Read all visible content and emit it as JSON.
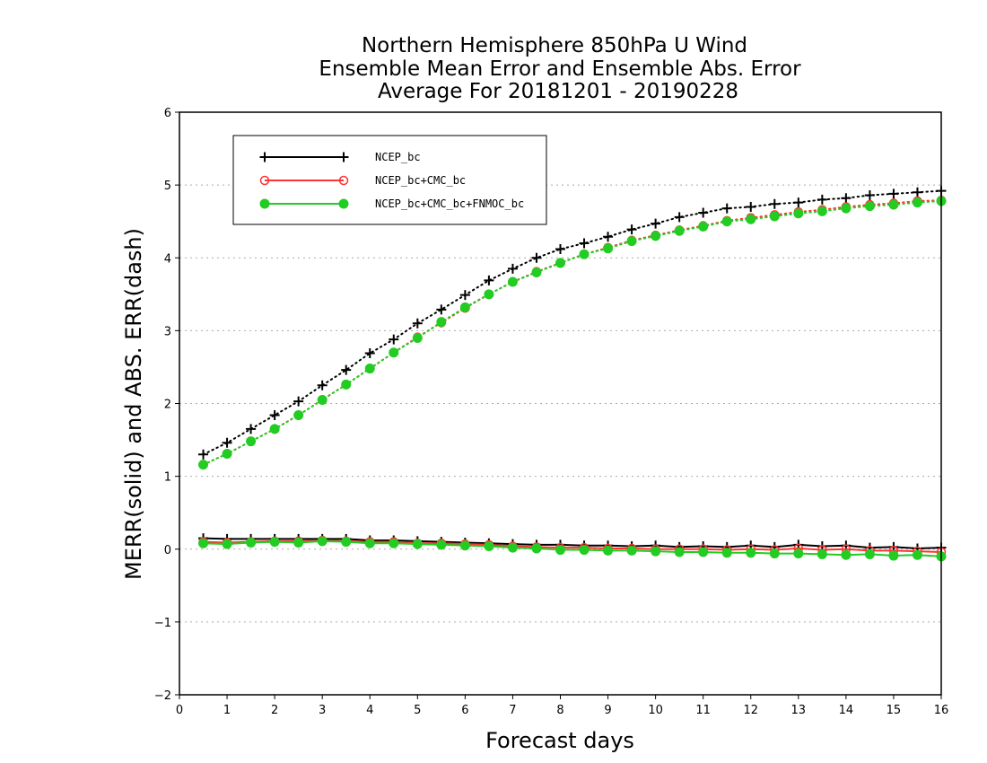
{
  "chart_data": {
    "type": "line",
    "title": [
      "Northern Hemisphere 850hPa U Wind",
      "Ensemble Mean Error and Ensemble Abs. Error",
      "Average For 20181201 - 20190228"
    ],
    "xlabel": "Forecast days",
    "ylabel": "MERR(solid) and ABS. ERR(dash)",
    "xlim": [
      0,
      16
    ],
    "ylim": [
      -2,
      6
    ],
    "xticks": [
      "0",
      "1",
      "2",
      "3",
      "4",
      "5",
      "6",
      "7",
      "8",
      "9",
      "10",
      "11",
      "12",
      "13",
      "14",
      "15",
      "16"
    ],
    "yticks": [
      "6",
      "5",
      "4",
      "3",
      "2",
      "1",
      "0",
      "−1",
      "−2"
    ],
    "grid": "horizontal dotted",
    "legend_position": "top-left",
    "x": [
      0.5,
      1,
      1.5,
      2,
      2.5,
      3,
      3.5,
      4,
      4.5,
      5,
      5.5,
      6,
      6.5,
      7,
      7.5,
      8,
      8.5,
      9,
      9.5,
      10,
      10.5,
      11,
      11.5,
      12,
      12.5,
      13,
      13.5,
      14,
      14.5,
      15,
      15.5,
      16
    ],
    "series": [
      {
        "name": "NCEP_bc",
        "color": "#000000",
        "marker": "plus",
        "abs_err": [
          1.3,
          1.46,
          1.65,
          1.84,
          2.03,
          2.25,
          2.46,
          2.69,
          2.88,
          3.1,
          3.29,
          3.49,
          3.69,
          3.85,
          4.0,
          4.12,
          4.2,
          4.29,
          4.39,
          4.47,
          4.56,
          4.62,
          4.68,
          4.7,
          4.74,
          4.76,
          4.8,
          4.82,
          4.86,
          4.88,
          4.9,
          4.92
        ],
        "mean_err": [
          0.15,
          0.14,
          0.14,
          0.14,
          0.14,
          0.14,
          0.14,
          0.12,
          0.12,
          0.11,
          0.1,
          0.09,
          0.08,
          0.07,
          0.06,
          0.06,
          0.05,
          0.05,
          0.04,
          0.05,
          0.03,
          0.04,
          0.03,
          0.05,
          0.03,
          0.06,
          0.04,
          0.05,
          0.02,
          0.03,
          0.01,
          0.02
        ]
      },
      {
        "name": "NCEP_bc+CMC_bc",
        "color": "#ff3333",
        "marker": "open-circle",
        "abs_err": [
          1.16,
          1.31,
          1.48,
          1.65,
          1.84,
          2.05,
          2.26,
          2.48,
          2.7,
          2.91,
          3.11,
          3.31,
          3.5,
          3.67,
          3.81,
          3.93,
          4.05,
          4.14,
          4.24,
          4.31,
          4.38,
          4.44,
          4.51,
          4.55,
          4.59,
          4.63,
          4.66,
          4.7,
          4.73,
          4.75,
          4.78,
          4.79
        ],
        "mean_err": [
          0.1,
          0.09,
          0.1,
          0.11,
          0.11,
          0.12,
          0.11,
          0.1,
          0.1,
          0.08,
          0.08,
          0.07,
          0.06,
          0.04,
          0.03,
          0.02,
          0.02,
          0.01,
          0.01,
          0.0,
          0.0,
          0.0,
          -0.01,
          0.0,
          -0.01,
          0.01,
          -0.01,
          0.0,
          -0.02,
          -0.02,
          -0.03,
          -0.04
        ]
      },
      {
        "name": "NCEP_bc+CMC_bc+FNMOC_bc",
        "color": "#22cc22",
        "marker": "filled-circle",
        "abs_err": [
          1.16,
          1.31,
          1.48,
          1.65,
          1.84,
          2.05,
          2.26,
          2.48,
          2.7,
          2.9,
          3.12,
          3.32,
          3.5,
          3.67,
          3.8,
          3.93,
          4.05,
          4.13,
          4.23,
          4.3,
          4.37,
          4.43,
          4.5,
          4.53,
          4.57,
          4.61,
          4.64,
          4.68,
          4.71,
          4.73,
          4.76,
          4.78
        ],
        "mean_err": [
          0.08,
          0.07,
          0.09,
          0.1,
          0.09,
          0.11,
          0.1,
          0.08,
          0.08,
          0.07,
          0.06,
          0.05,
          0.04,
          0.02,
          0.01,
          -0.01,
          -0.01,
          -0.02,
          -0.02,
          -0.03,
          -0.04,
          -0.04,
          -0.05,
          -0.05,
          -0.06,
          -0.06,
          -0.07,
          -0.08,
          -0.07,
          -0.09,
          -0.08,
          -0.1
        ]
      }
    ]
  }
}
